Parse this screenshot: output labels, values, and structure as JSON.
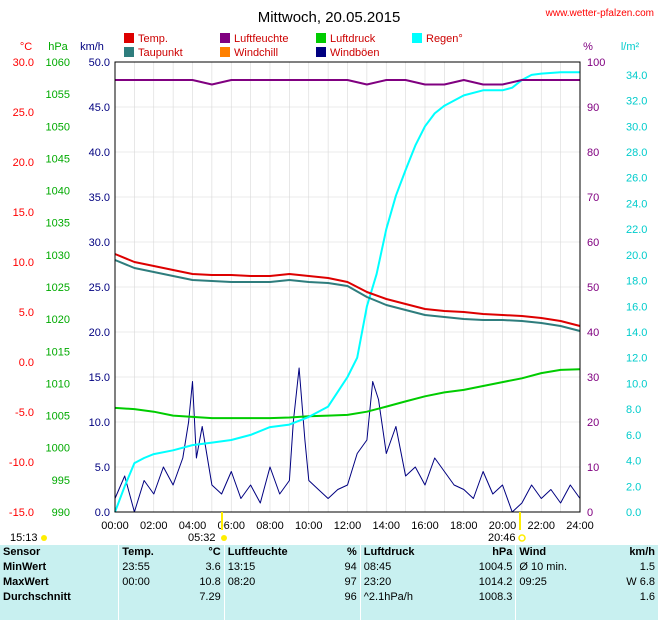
{
  "title": "Mittwoch, 20.05.2015",
  "site": "www.wetter-pfalzen.com",
  "axes": {
    "temp_unit": "°C",
    "press_unit": "hPa",
    "wind_unit": "km/h",
    "hum_unit": "%",
    "rain_unit": "l/m²",
    "temp_ticks": [
      "30.0",
      "25.0",
      "20.0",
      "15.0",
      "10.0",
      "5.0",
      "0.0",
      "-5.0",
      "-10.0",
      "-15.0"
    ],
    "press_ticks": [
      "1060",
      "1055",
      "1050",
      "1045",
      "1040",
      "1035",
      "1030",
      "1025",
      "1020",
      "1015",
      "1010",
      "1005",
      "1000",
      "995",
      "990"
    ],
    "wind_ticks": [
      "50.0",
      "45.0",
      "40.0",
      "35.0",
      "30.0",
      "25.0",
      "20.0",
      "15.0",
      "10.0",
      "5.0",
      "0.0"
    ],
    "hum_ticks": [
      "100",
      "90",
      "80",
      "70",
      "60",
      "50",
      "40",
      "30",
      "20",
      "10",
      "0"
    ],
    "rain_ticks": [
      "34.0",
      "32.0",
      "30.0",
      "28.0",
      "26.0",
      "24.0",
      "22.0",
      "20.0",
      "18.0",
      "16.0",
      "14.0",
      "12.0",
      "10.0",
      "8.0",
      "6.0",
      "4.0",
      "2.0",
      "0.0"
    ],
    "x_ticks": [
      "00:00",
      "02:00",
      "04:00",
      "06:00",
      "08:00",
      "10:00",
      "12:00",
      "14:00",
      "16:00",
      "18:00",
      "20:00",
      "22:00",
      "24:00"
    ]
  },
  "legend": [
    {
      "label": "Temp.",
      "color": "#dd0000"
    },
    {
      "label": "Luftfeuchte",
      "color": "#800080"
    },
    {
      "label": "Luftdruck",
      "color": "#00cc00"
    },
    {
      "label": "Regen°",
      "color": "#00ffff"
    },
    {
      "label": "Taupunkt",
      "color": "#2e7d7d"
    },
    {
      "label": "Windchill",
      "color": "#ff8000"
    },
    {
      "label": "Windböen",
      "color": "#000080"
    }
  ],
  "sun": {
    "sunrise": "05:32",
    "sunset": "20:46",
    "moonset": "15:13"
  },
  "chart_data": {
    "type": "line",
    "x_unit": "hours",
    "series": [
      {
        "name": "Temp.",
        "axis": "°C",
        "color": "#dd0000",
        "x": [
          0,
          1,
          2,
          3,
          4,
          5,
          6,
          7,
          8,
          9,
          10,
          11,
          12,
          13,
          14,
          15,
          16,
          17,
          18,
          19,
          20,
          21,
          22,
          23,
          24
        ],
        "y": [
          10.8,
          10.0,
          9.6,
          9.2,
          8.8,
          8.7,
          8.7,
          8.6,
          8.6,
          8.8,
          8.6,
          8.4,
          8.0,
          7.0,
          6.3,
          5.8,
          5.3,
          5.1,
          5.0,
          4.8,
          4.7,
          4.6,
          4.4,
          4.1,
          3.6
        ]
      },
      {
        "name": "Taupunkt",
        "axis": "°C",
        "color": "#2e7d7d",
        "x": [
          0,
          1,
          2,
          3,
          4,
          5,
          6,
          7,
          8,
          9,
          10,
          11,
          12,
          13,
          14,
          15,
          16,
          17,
          18,
          19,
          20,
          21,
          22,
          23,
          24
        ],
        "y": [
          10.2,
          9.4,
          9.0,
          8.6,
          8.2,
          8.1,
          8.0,
          8.0,
          8.0,
          8.2,
          8.0,
          7.9,
          7.6,
          6.5,
          5.7,
          5.2,
          4.7,
          4.5,
          4.3,
          4.2,
          4.2,
          4.1,
          3.9,
          3.6,
          3.1
        ]
      },
      {
        "name": "Luftfeuchte",
        "axis": "%",
        "color": "#800080",
        "x": [
          0,
          1,
          2,
          3,
          4,
          5,
          6,
          7,
          8,
          9,
          10,
          11,
          12,
          13,
          14,
          15,
          16,
          17,
          18,
          19,
          20,
          21,
          22,
          23,
          24
        ],
        "y": [
          96,
          96,
          96,
          96,
          96,
          95,
          96,
          96,
          96,
          96,
          96,
          96,
          96,
          95,
          96,
          96,
          95,
          95,
          96,
          95,
          95,
          96,
          96,
          96,
          96
        ]
      },
      {
        "name": "Luftdruck",
        "axis": "hPa",
        "color": "#00cc00",
        "x": [
          0,
          1,
          2,
          3,
          4,
          5,
          6,
          7,
          8,
          9,
          10,
          11,
          12,
          13,
          14,
          15,
          16,
          17,
          18,
          19,
          20,
          21,
          22,
          23,
          24
        ],
        "y": [
          1006.2,
          1006.0,
          1005.6,
          1005.0,
          1004.8,
          1004.6,
          1004.6,
          1004.6,
          1004.6,
          1004.7,
          1004.9,
          1005.0,
          1005.1,
          1005.6,
          1006.4,
          1007.2,
          1008.0,
          1008.6,
          1009.0,
          1009.6,
          1010.2,
          1010.8,
          1011.6,
          1012.1,
          1012.2
        ]
      },
      {
        "name": "Regen°",
        "axis": "l/m²",
        "color": "#00ffff",
        "x": [
          0,
          0.5,
          1,
          1.5,
          2,
          3,
          4,
          5,
          6,
          7,
          8,
          9,
          10,
          11,
          12,
          12.5,
          13,
          13.5,
          14,
          14.5,
          15,
          15.5,
          16,
          16.5,
          17,
          18,
          19,
          20,
          20.5,
          21,
          21.5,
          22,
          23,
          24
        ],
        "y": [
          0,
          2.0,
          3.8,
          4.2,
          4.5,
          4.8,
          5.2,
          5.4,
          5.6,
          6.0,
          6.6,
          6.8,
          7.4,
          8.2,
          10.5,
          12.0,
          16.0,
          18.5,
          22.0,
          24.6,
          26.6,
          28.5,
          30.0,
          31.0,
          31.6,
          32.4,
          32.8,
          32.8,
          33.0,
          33.6,
          34.0,
          34.1,
          34.2,
          34.2
        ]
      },
      {
        "name": "Windböen",
        "axis": "km/h",
        "color": "#000080",
        "x": [
          0,
          0.5,
          1,
          1.5,
          2,
          2.5,
          3,
          3.5,
          3.8,
          4,
          4.2,
          4.5,
          5,
          5.5,
          6,
          6.5,
          7,
          7.5,
          8,
          8.5,
          9,
          9.2,
          9.5,
          9.8,
          10,
          10.5,
          11,
          11.5,
          12,
          12.5,
          13,
          13.3,
          13.6,
          14,
          14.5,
          15,
          15.5,
          16,
          16.5,
          17,
          17.5,
          18,
          18.5,
          19,
          19.5,
          20,
          20.5,
          21,
          21.5,
          22,
          22.5,
          23,
          23.5,
          24
        ],
        "y": [
          1.5,
          4.0,
          0.0,
          3.5,
          2.0,
          5.0,
          3.0,
          6.0,
          10.0,
          14.5,
          6.0,
          9.5,
          3.0,
          2.0,
          4.5,
          1.5,
          3.0,
          1.0,
          5.0,
          2.0,
          3.5,
          10.0,
          16.0,
          8.0,
          3.5,
          2.5,
          1.5,
          2.5,
          3.0,
          6.5,
          8.0,
          14.5,
          12.5,
          6.5,
          9.5,
          4.0,
          5.0,
          3.0,
          6.0,
          4.5,
          3.0,
          2.5,
          1.5,
          4.5,
          2.0,
          3.0,
          0.0,
          1.0,
          3.0,
          1.5,
          2.5,
          1.0,
          3.0,
          1.5
        ]
      }
    ],
    "axis_ranges": {
      "°C": [
        -15,
        30
      ],
      "hPa": [
        990,
        1060
      ],
      "km/h": [
        0,
        50
      ],
      "%": [
        0,
        100
      ],
      "l/m²": [
        0,
        35
      ],
      "hours": [
        0,
        24
      ]
    },
    "grid": true
  },
  "stats": {
    "header": [
      "Sensor",
      "Temp.",
      "°C",
      "Luftfeuchte",
      "%",
      "Luftdruck",
      "hPa",
      "Wind",
      "km/h"
    ],
    "rows": [
      [
        "MinWert",
        "23:55",
        "3.6",
        "13:15",
        "94",
        "08:45",
        "1004.5",
        "Ø 10 min.",
        "1.5"
      ],
      [
        "MaxWert",
        "00:00",
        "10.8",
        "08:20",
        "97",
        "23:20",
        "1014.2",
        "09:25",
        "W 6.8"
      ],
      [
        "Durchschnitt",
        "",
        "7.29",
        "",
        "96",
        "^2.1hPa/h",
        "1008.3",
        "",
        "1.6"
      ],
      [
        "",
        "",
        "",
        "",
        "",
        "",
        "",
        "",
        ""
      ]
    ]
  }
}
